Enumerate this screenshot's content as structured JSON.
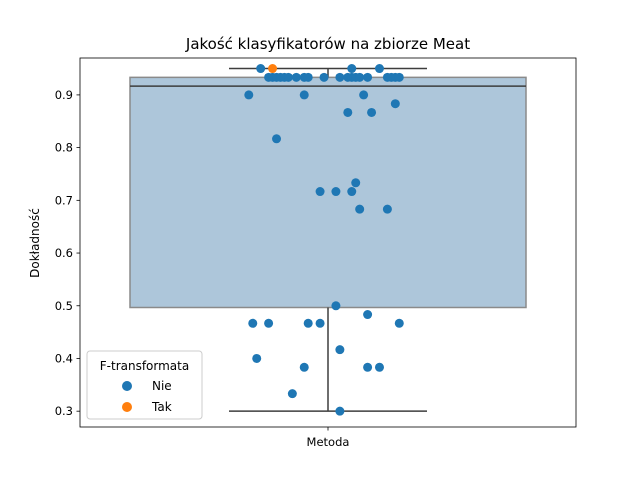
{
  "chart_data": {
    "type": "box+strip",
    "title": "Jakość klasyfikatorów na zbiorze Meat",
    "xlabel": "",
    "ylabel": "Dokładność",
    "categories": [
      "Metoda"
    ],
    "ylim": [
      0.27,
      0.97
    ],
    "yticks": [
      "0.3",
      "0.4",
      "0.5",
      "0.6",
      "0.7",
      "0.8",
      "0.9"
    ],
    "box": {
      "whisker_low": 0.3,
      "q1": 0.4967,
      "median": 0.9167,
      "q3": 0.9333,
      "whisker_high": 0.95,
      "color": "#adc6da"
    },
    "legend": {
      "title": "F-transformata",
      "position": "lower left",
      "entries": [
        {
          "label": "Nie",
          "color": "#1f77b4"
        },
        {
          "label": "Tak",
          "color": "#ff7f0e"
        }
      ]
    },
    "series": [
      {
        "name": "Nie",
        "color": "#1f77b4",
        "points": [
          {
            "jitter": -0.17,
            "y": 0.95
          },
          {
            "jitter": 0.06,
            "y": 0.95
          },
          {
            "jitter": 0.13,
            "y": 0.95
          },
          {
            "jitter": -0.15,
            "y": 0.9333
          },
          {
            "jitter": -0.14,
            "y": 0.9333
          },
          {
            "jitter": -0.13,
            "y": 0.9333
          },
          {
            "jitter": -0.12,
            "y": 0.9333
          },
          {
            "jitter": -0.11,
            "y": 0.9333
          },
          {
            "jitter": -0.1,
            "y": 0.9333
          },
          {
            "jitter": -0.08,
            "y": 0.9333
          },
          {
            "jitter": -0.06,
            "y": 0.9333
          },
          {
            "jitter": -0.05,
            "y": 0.9333
          },
          {
            "jitter": -0.01,
            "y": 0.9333
          },
          {
            "jitter": 0.03,
            "y": 0.9333
          },
          {
            "jitter": 0.05,
            "y": 0.9333
          },
          {
            "jitter": 0.06,
            "y": 0.9333
          },
          {
            "jitter": 0.07,
            "y": 0.9333
          },
          {
            "jitter": 0.08,
            "y": 0.9333
          },
          {
            "jitter": 0.1,
            "y": 0.9333
          },
          {
            "jitter": 0.15,
            "y": 0.9333
          },
          {
            "jitter": 0.16,
            "y": 0.9333
          },
          {
            "jitter": 0.17,
            "y": 0.9333
          },
          {
            "jitter": 0.18,
            "y": 0.9333
          },
          {
            "jitter": -0.2,
            "y": 0.9
          },
          {
            "jitter": -0.06,
            "y": 0.9
          },
          {
            "jitter": 0.09,
            "y": 0.9
          },
          {
            "jitter": 0.17,
            "y": 0.8833
          },
          {
            "jitter": 0.05,
            "y": 0.8667
          },
          {
            "jitter": 0.11,
            "y": 0.8667
          },
          {
            "jitter": -0.13,
            "y": 0.8167
          },
          {
            "jitter": 0.07,
            "y": 0.7333
          },
          {
            "jitter": -0.02,
            "y": 0.7167
          },
          {
            "jitter": 0.02,
            "y": 0.7167
          },
          {
            "jitter": 0.06,
            "y": 0.7167
          },
          {
            "jitter": 0.08,
            "y": 0.6833
          },
          {
            "jitter": 0.15,
            "y": 0.6833
          },
          {
            "jitter": 0.02,
            "y": 0.5
          },
          {
            "jitter": 0.1,
            "y": 0.4833
          },
          {
            "jitter": -0.19,
            "y": 0.4667
          },
          {
            "jitter": -0.15,
            "y": 0.4667
          },
          {
            "jitter": -0.05,
            "y": 0.4667
          },
          {
            "jitter": -0.02,
            "y": 0.4667
          },
          {
            "jitter": 0.18,
            "y": 0.4667
          },
          {
            "jitter": 0.03,
            "y": 0.4167
          },
          {
            "jitter": -0.18,
            "y": 0.4
          },
          {
            "jitter": -0.06,
            "y": 0.3833
          },
          {
            "jitter": 0.1,
            "y": 0.3833
          },
          {
            "jitter": 0.13,
            "y": 0.3833
          },
          {
            "jitter": -0.09,
            "y": 0.3333
          },
          {
            "jitter": 0.03,
            "y": 0.3
          }
        ]
      },
      {
        "name": "Tak",
        "color": "#ff7f0e",
        "points": [
          {
            "jitter": -0.14,
            "y": 0.95
          }
        ]
      }
    ]
  }
}
